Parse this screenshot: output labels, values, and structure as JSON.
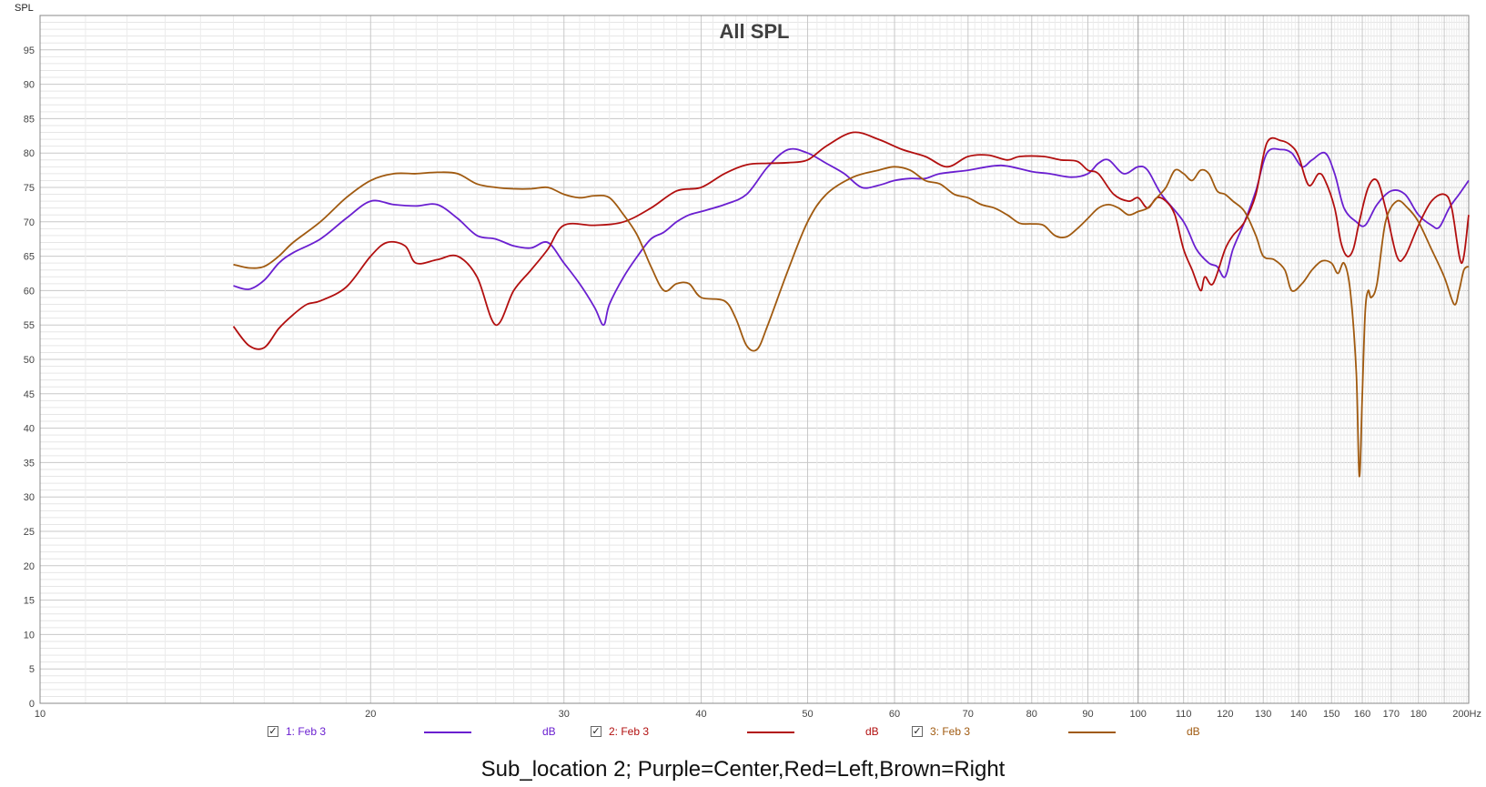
{
  "chart_data": {
    "type": "line",
    "title": "All SPL",
    "ylabel": "SPL",
    "x_unit": "Hz",
    "x_scale": "log",
    "xlim": [
      10,
      200
    ],
    "ylim": [
      0,
      100
    ],
    "grid": true,
    "x_tick_labels": [
      "10",
      "20",
      "30",
      "40",
      "50",
      "60",
      "70",
      "80",
      "90",
      "100",
      "110",
      "120",
      "130",
      "140",
      "150",
      "160",
      "170",
      "180",
      "200Hz"
    ],
    "y_tick_labels": [
      "0",
      "5",
      "10",
      "15",
      "20",
      "25",
      "30",
      "35",
      "40",
      "45",
      "50",
      "55",
      "60",
      "65",
      "70",
      "75",
      "80",
      "85",
      "90",
      "95"
    ],
    "caption": "Sub_location 2; Purple=Center,Red=Left,Brown=Right",
    "series": [
      {
        "name": "1: Feb 3",
        "unit": "dB",
        "color": "#6a1fd0",
        "points": [
          [
            15,
            60.7
          ],
          [
            15.5,
            60.2
          ],
          [
            16,
            61.5
          ],
          [
            16.5,
            64
          ],
          [
            17,
            65.5
          ],
          [
            18,
            67.5
          ],
          [
            19,
            70.5
          ],
          [
            20,
            73
          ],
          [
            21,
            72.5
          ],
          [
            22,
            72.3
          ],
          [
            23,
            72.5
          ],
          [
            24,
            70.5
          ],
          [
            25,
            68
          ],
          [
            26,
            67.5
          ],
          [
            27,
            66.5
          ],
          [
            28,
            66.2
          ],
          [
            29,
            67
          ],
          [
            30,
            64
          ],
          [
            31,
            61
          ],
          [
            32,
            57.5
          ],
          [
            32.6,
            55
          ],
          [
            33,
            58
          ],
          [
            34,
            62
          ],
          [
            35,
            65
          ],
          [
            36,
            67.5
          ],
          [
            37,
            68.5
          ],
          [
            38,
            70
          ],
          [
            39,
            71
          ],
          [
            40,
            71.5
          ],
          [
            42,
            72.5
          ],
          [
            44,
            74
          ],
          [
            46,
            78
          ],
          [
            48,
            80.5
          ],
          [
            50,
            80
          ],
          [
            52,
            78.5
          ],
          [
            54,
            77
          ],
          [
            56,
            75
          ],
          [
            58,
            75.3
          ],
          [
            60,
            76
          ],
          [
            62,
            76.3
          ],
          [
            64,
            76.3
          ],
          [
            66,
            77
          ],
          [
            70,
            77.5
          ],
          [
            75,
            78.2
          ],
          [
            80,
            77.3
          ],
          [
            83,
            77
          ],
          [
            87,
            76.5
          ],
          [
            90,
            77
          ],
          [
            92,
            78.5
          ],
          [
            94,
            79
          ],
          [
            97,
            77
          ],
          [
            100,
            78
          ],
          [
            102,
            77.5
          ],
          [
            105,
            74
          ],
          [
            110,
            70
          ],
          [
            113,
            66
          ],
          [
            116,
            64
          ],
          [
            118,
            63.5
          ],
          [
            120,
            62
          ],
          [
            122,
            66
          ],
          [
            125,
            70
          ],
          [
            128,
            74.5
          ],
          [
            131,
            80
          ],
          [
            135,
            80.5
          ],
          [
            138,
            80
          ],
          [
            141,
            78
          ],
          [
            144,
            79
          ],
          [
            148,
            80
          ],
          [
            151,
            77
          ],
          [
            154,
            72
          ],
          [
            158,
            70
          ],
          [
            161,
            69.5
          ],
          [
            165,
            72.5
          ],
          [
            170,
            74.5
          ],
          [
            175,
            74
          ],
          [
            180,
            71
          ],
          [
            185,
            69.5
          ],
          [
            188,
            69.2
          ],
          [
            192,
            72
          ],
          [
            196,
            74
          ],
          [
            200,
            76
          ]
        ]
      },
      {
        "name": "2: Feb 3",
        "unit": "dB",
        "color": "#b20f0f",
        "points": [
          [
            15,
            54.8
          ],
          [
            15.5,
            52
          ],
          [
            16,
            51.7
          ],
          [
            16.5,
            54.5
          ],
          [
            17,
            56.5
          ],
          [
            17.5,
            58
          ],
          [
            18,
            58.5
          ],
          [
            19,
            60.5
          ],
          [
            20,
            65
          ],
          [
            20.7,
            67
          ],
          [
            21.5,
            66.5
          ],
          [
            22,
            64
          ],
          [
            23,
            64.5
          ],
          [
            24,
            65
          ],
          [
            25,
            62
          ],
          [
            26,
            55
          ],
          [
            27,
            60
          ],
          [
            28,
            63
          ],
          [
            29,
            66
          ],
          [
            30,
            69.5
          ],
          [
            32,
            69.5
          ],
          [
            34,
            70
          ],
          [
            36,
            72
          ],
          [
            38,
            74.5
          ],
          [
            40,
            75
          ],
          [
            42,
            77
          ],
          [
            44,
            78.3
          ],
          [
            46,
            78.5
          ],
          [
            48,
            78.6
          ],
          [
            50,
            79
          ],
          [
            52,
            81
          ],
          [
            55,
            83
          ],
          [
            58,
            82
          ],
          [
            61,
            80.5
          ],
          [
            64,
            79.5
          ],
          [
            67,
            78
          ],
          [
            70,
            79.5
          ],
          [
            73,
            79.7
          ],
          [
            76,
            79
          ],
          [
            78,
            79.5
          ],
          [
            82,
            79.5
          ],
          [
            85,
            79
          ],
          [
            88,
            78.8
          ],
          [
            90,
            77.5
          ],
          [
            92,
            77
          ],
          [
            95,
            74
          ],
          [
            98,
            73
          ],
          [
            100,
            73.5
          ],
          [
            102,
            72
          ],
          [
            104,
            73.5
          ],
          [
            106,
            73
          ],
          [
            108,
            71
          ],
          [
            110,
            66
          ],
          [
            112,
            63
          ],
          [
            114,
            60
          ],
          [
            115,
            62
          ],
          [
            117,
            61
          ],
          [
            120,
            66
          ],
          [
            122,
            68
          ],
          [
            125,
            70
          ],
          [
            128,
            74
          ],
          [
            131,
            81.5
          ],
          [
            135,
            81.8
          ],
          [
            138,
            81
          ],
          [
            140,
            79.5
          ],
          [
            143,
            75.3
          ],
          [
            146,
            77
          ],
          [
            148,
            76
          ],
          [
            151,
            72
          ],
          [
            153,
            67
          ],
          [
            155,
            65
          ],
          [
            157,
            66
          ],
          [
            159,
            70
          ],
          [
            162,
            75
          ],
          [
            165,
            76
          ],
          [
            168,
            72
          ],
          [
            172,
            65
          ],
          [
            175,
            65
          ],
          [
            180,
            69.5
          ],
          [
            185,
            73
          ],
          [
            190,
            74
          ],
          [
            193,
            72
          ],
          [
            197,
            64
          ],
          [
            200,
            71
          ]
        ]
      },
      {
        "name": "3: Feb 3",
        "unit": "dB",
        "color": "#a05a10",
        "points": [
          [
            15,
            63.8
          ],
          [
            15.5,
            63.3
          ],
          [
            16,
            63.5
          ],
          [
            16.5,
            65
          ],
          [
            17,
            67
          ],
          [
            18,
            70
          ],
          [
            19,
            73.5
          ],
          [
            20,
            76
          ],
          [
            21,
            77
          ],
          [
            22,
            77
          ],
          [
            23,
            77.2
          ],
          [
            24,
            77
          ],
          [
            25,
            75.5
          ],
          [
            26,
            75
          ],
          [
            27,
            74.8
          ],
          [
            28,
            74.8
          ],
          [
            29,
            75
          ],
          [
            30,
            74
          ],
          [
            31,
            73.5
          ],
          [
            32,
            73.8
          ],
          [
            33,
            73.5
          ],
          [
            34,
            71
          ],
          [
            35,
            68
          ],
          [
            36,
            63.5
          ],
          [
            37,
            60
          ],
          [
            38,
            61
          ],
          [
            39,
            61
          ],
          [
            40,
            59
          ],
          [
            42,
            58.5
          ],
          [
            43,
            56
          ],
          [
            44,
            52
          ],
          [
            45,
            51.5
          ],
          [
            46,
            55
          ],
          [
            48,
            63
          ],
          [
            50,
            70
          ],
          [
            52,
            74
          ],
          [
            55,
            76.5
          ],
          [
            58,
            77.5
          ],
          [
            60,
            78
          ],
          [
            62,
            77.5
          ],
          [
            64,
            76
          ],
          [
            66,
            75.5
          ],
          [
            68,
            74
          ],
          [
            70,
            73.5
          ],
          [
            72,
            72.5
          ],
          [
            74,
            72
          ],
          [
            76,
            71
          ],
          [
            78,
            69.8
          ],
          [
            80,
            69.7
          ],
          [
            82,
            69.5
          ],
          [
            84,
            68
          ],
          [
            86,
            67.8
          ],
          [
            88,
            69
          ],
          [
            90,
            70.5
          ],
          [
            92,
            72
          ],
          [
            94,
            72.5
          ],
          [
            96,
            72
          ],
          [
            98,
            71
          ],
          [
            100,
            71.5
          ],
          [
            102,
            72
          ],
          [
            104,
            73.5
          ],
          [
            106,
            75
          ],
          [
            108,
            77.5
          ],
          [
            110,
            77
          ],
          [
            112,
            76
          ],
          [
            114,
            77.5
          ],
          [
            116,
            77
          ],
          [
            118,
            74.5
          ],
          [
            120,
            74
          ],
          [
            122,
            73
          ],
          [
            125,
            71.5
          ],
          [
            128,
            68
          ],
          [
            130,
            65
          ],
          [
            133,
            64.5
          ],
          [
            136,
            63
          ],
          [
            138,
            60
          ],
          [
            141,
            61
          ],
          [
            144,
            63
          ],
          [
            147,
            64.3
          ],
          [
            150,
            64
          ],
          [
            152,
            62.5
          ],
          [
            154,
            64
          ],
          [
            156,
            60
          ],
          [
            158,
            48
          ],
          [
            159,
            33
          ],
          [
            160,
            45
          ],
          [
            161,
            57
          ],
          [
            162,
            60
          ],
          [
            163,
            59
          ],
          [
            165,
            61
          ],
          [
            168,
            70
          ],
          [
            172,
            73
          ],
          [
            176,
            72
          ],
          [
            180,
            70
          ],
          [
            185,
            66
          ],
          [
            190,
            62
          ],
          [
            194,
            58
          ],
          [
            196,
            60
          ],
          [
            198,
            63
          ],
          [
            200,
            63.5
          ]
        ]
      }
    ]
  }
}
